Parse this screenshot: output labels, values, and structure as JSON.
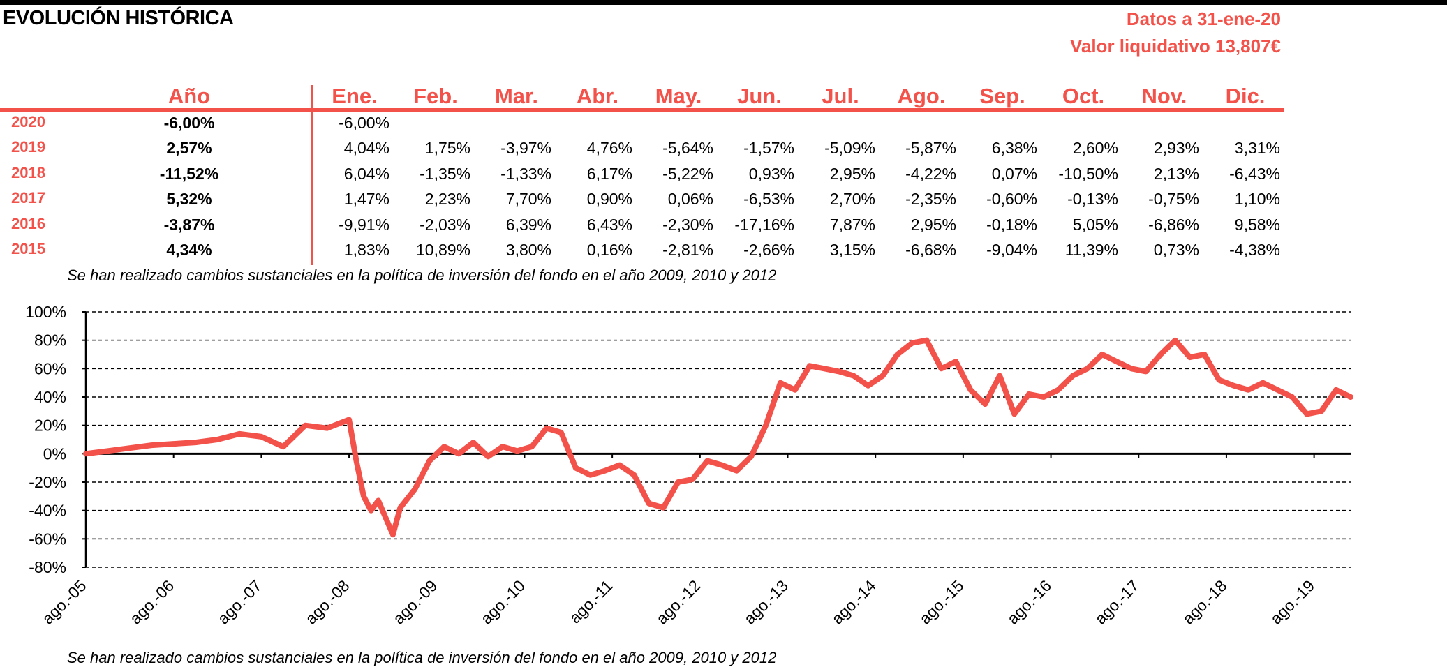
{
  "header": {
    "title": "EVOLUCIÓN HISTÓRICA",
    "date_label": "Datos a 31-ene-20",
    "nav_label": "Valor liquidativo 13,807€"
  },
  "table": {
    "year_header": "Año",
    "months": [
      "Ene.",
      "Feb.",
      "Mar.",
      "Abr.",
      "May.",
      "Jun.",
      "Jul.",
      "Ago.",
      "Sep.",
      "Oct.",
      "Nov.",
      "Dic."
    ],
    "rows": [
      {
        "year": "2020",
        "total": "-6,00%",
        "values": [
          "-6,00%",
          "",
          "",
          "",
          "",
          "",
          "",
          "",
          "",
          "",
          "",
          ""
        ]
      },
      {
        "year": "2019",
        "total": "2,57%",
        "values": [
          "4,04%",
          "1,75%",
          "-3,97%",
          "4,76%",
          "-5,64%",
          "-1,57%",
          "-5,09%",
          "-5,87%",
          "6,38%",
          "2,60%",
          "2,93%",
          "3,31%"
        ]
      },
      {
        "year": "2018",
        "total": "-11,52%",
        "values": [
          "6,04%",
          "-1,35%",
          "-1,33%",
          "6,17%",
          "-5,22%",
          "0,93%",
          "2,95%",
          "-4,22%",
          "0,07%",
          "-10,50%",
          "2,13%",
          "-6,43%"
        ]
      },
      {
        "year": "2017",
        "total": "5,32%",
        "values": [
          "1,47%",
          "2,23%",
          "7,70%",
          "0,90%",
          "0,06%",
          "-6,53%",
          "2,70%",
          "-2,35%",
          "-0,60%",
          "-0,13%",
          "-0,75%",
          "1,10%"
        ]
      },
      {
        "year": "2016",
        "total": "-3,87%",
        "values": [
          "-9,91%",
          "-2,03%",
          "6,39%",
          "6,43%",
          "-2,30%",
          "-17,16%",
          "7,87%",
          "2,95%",
          "-0,18%",
          "5,05%",
          "-6,86%",
          "9,58%"
        ]
      },
      {
        "year": "2015",
        "total": "4,34%",
        "values": [
          "1,83%",
          "10,89%",
          "3,80%",
          "0,16%",
          "-2,81%",
          "-2,66%",
          "3,15%",
          "-6,68%",
          "-9,04%",
          "11,39%",
          "0,73%",
          "-4,38%"
        ]
      }
    ]
  },
  "note_text": "Se han realizado cambios sustanciales en la política de inversión del fondo en el año 2009, 2010 y 2012",
  "colors": {
    "accent": "#f2524a",
    "text": "#000000"
  },
  "chart_data": {
    "type": "line",
    "x_tick_labels": [
      "ago.-05",
      "ago.-06",
      "ago.-07",
      "ago.-08",
      "ago.-09",
      "ago.-10",
      "ago.-11",
      "ago.-12",
      "ago.-13",
      "ago.-14",
      "ago.-15",
      "ago.-16",
      "ago.-17",
      "ago.-18",
      "ago.-19"
    ],
    "y_tick_labels": [
      "100%",
      "80%",
      "60%",
      "40%",
      "20%",
      "0%",
      "-20%",
      "-40%",
      "-60%",
      "-80%"
    ],
    "ylim": [
      -80,
      100
    ],
    "xlim": [
      "2005-08",
      "2020-01"
    ],
    "grid": "horizontal dashed",
    "series": [
      {
        "color": "#f2524a",
        "x": [
          "2005-08",
          "2005-11",
          "2006-02",
          "2006-05",
          "2006-08",
          "2006-11",
          "2007-02",
          "2007-05",
          "2007-08",
          "2007-11",
          "2008-02",
          "2008-05",
          "2008-08",
          "2008-09",
          "2008-10",
          "2008-11",
          "2008-12",
          "2009-01",
          "2009-02",
          "2009-03",
          "2009-05",
          "2009-07",
          "2009-09",
          "2009-11",
          "2010-01",
          "2010-03",
          "2010-05",
          "2010-07",
          "2010-09",
          "2010-11",
          "2011-01",
          "2011-03",
          "2011-05",
          "2011-07",
          "2011-09",
          "2011-11",
          "2012-01",
          "2012-03",
          "2012-05",
          "2012-07",
          "2012-09",
          "2012-11",
          "2013-01",
          "2013-03",
          "2013-05",
          "2013-07",
          "2013-09",
          "2013-11",
          "2014-01",
          "2014-03",
          "2014-05",
          "2014-07",
          "2014-09",
          "2014-11",
          "2015-01",
          "2015-03",
          "2015-05",
          "2015-07",
          "2015-09",
          "2015-11",
          "2016-01",
          "2016-03",
          "2016-05",
          "2016-07",
          "2016-09",
          "2016-11",
          "2017-01",
          "2017-03",
          "2017-05",
          "2017-07",
          "2017-09",
          "2017-11",
          "2018-01",
          "2018-03",
          "2018-05",
          "2018-07",
          "2018-09",
          "2018-11",
          "2019-01",
          "2019-03",
          "2019-05",
          "2019-07",
          "2019-09",
          "2019-11",
          "2020-01"
        ],
        "y": [
          0,
          2,
          4,
          6,
          7,
          8,
          10,
          14,
          12,
          5,
          20,
          18,
          24,
          -5,
          -30,
          -40,
          -33,
          -45,
          -57,
          -38,
          -25,
          -5,
          5,
          0,
          8,
          -2,
          5,
          2,
          5,
          18,
          15,
          -10,
          -15,
          -12,
          -8,
          -15,
          -35,
          -38,
          -20,
          -18,
          -5,
          -8,
          -12,
          -2,
          20,
          50,
          45,
          62,
          60,
          58,
          55,
          48,
          55,
          70,
          78,
          80,
          60,
          65,
          45,
          35,
          55,
          28,
          42,
          40,
          45,
          55,
          60,
          70,
          65,
          60,
          58,
          70,
          80,
          68,
          70,
          52,
          48,
          45,
          50,
          45,
          40,
          28,
          30,
          45,
          40
        ]
      }
    ]
  }
}
